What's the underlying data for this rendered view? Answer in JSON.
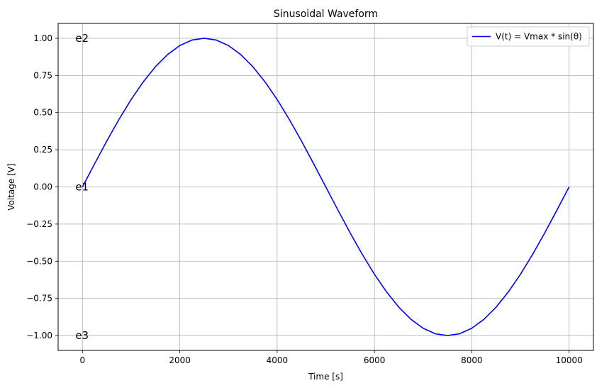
{
  "chart_data": {
    "type": "line",
    "title": "Sinusoidal Waveform",
    "xlabel": "Time [s]",
    "ylabel": "Voltage [V]",
    "xlim": [
      -500,
      10500
    ],
    "ylim": [
      -1.1,
      1.1
    ],
    "xticks": [
      0,
      2000,
      4000,
      6000,
      8000,
      10000
    ],
    "xtick_labels": [
      "0",
      "2000",
      "4000",
      "6000",
      "8000",
      "10000"
    ],
    "yticks": [
      -1.0,
      -0.75,
      -0.5,
      -0.25,
      0.0,
      0.25,
      0.5,
      0.75,
      1.0
    ],
    "ytick_labels": [
      "−1.00",
      "−0.75",
      "−0.50",
      "−0.25",
      "0.00",
      "0.25",
      "0.50",
      "0.75",
      "1.00"
    ],
    "grid": true,
    "legend_position": "top-right",
    "series": [
      {
        "name": "V(t) = Vmax * sin(θ)",
        "color": "#0000ff",
        "x": [
          0,
          250,
          500,
          750,
          1000,
          1250,
          1500,
          1750,
          2000,
          2250,
          2500,
          2750,
          3000,
          3250,
          3500,
          3750,
          4000,
          4250,
          4500,
          4750,
          5000,
          5250,
          5500,
          5750,
          6000,
          6250,
          6500,
          6750,
          7000,
          7250,
          7500,
          7750,
          8000,
          8250,
          8500,
          8750,
          9000,
          9250,
          9500,
          9750,
          10000
        ],
        "y": [
          0.0,
          0.156,
          0.309,
          0.454,
          0.588,
          0.707,
          0.809,
          0.891,
          0.951,
          0.988,
          1.0,
          0.988,
          0.951,
          0.891,
          0.809,
          0.707,
          0.588,
          0.454,
          0.309,
          0.156,
          0.0,
          -0.156,
          -0.309,
          -0.454,
          -0.588,
          -0.707,
          -0.809,
          -0.891,
          -0.951,
          -0.988,
          -1.0,
          -0.988,
          -0.951,
          -0.891,
          -0.809,
          -0.707,
          -0.588,
          -0.454,
          -0.309,
          -0.156,
          0.0
        ]
      }
    ],
    "annotations": [
      {
        "text": "e2",
        "x": 0,
        "y": 1.0
      },
      {
        "text": "e1",
        "x": 0,
        "y": 0.0
      },
      {
        "text": "e3",
        "x": 0,
        "y": -1.0
      }
    ]
  }
}
